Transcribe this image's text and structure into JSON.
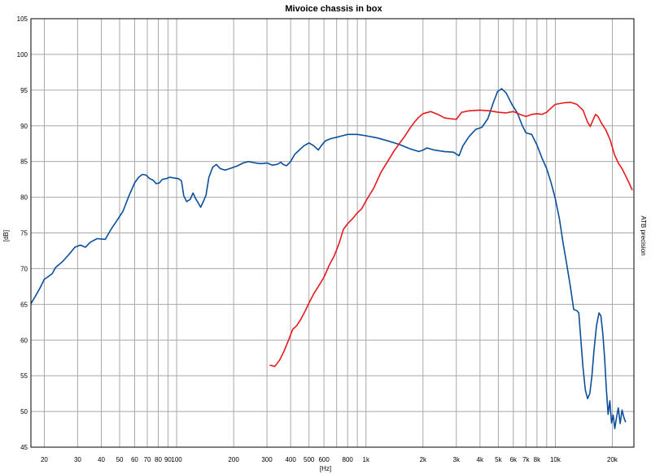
{
  "chart_data": {
    "type": "line",
    "title": "Mivoice chassis in box",
    "xlabel": "[Hz]",
    "ylabel": "[dB]",
    "right_label": "ATB precision",
    "x_scale": "log",
    "xlim": [
      17,
      26000
    ],
    "ylim": [
      45,
      105
    ],
    "grid": true,
    "y_ticks": [
      45,
      50,
      55,
      60,
      65,
      70,
      75,
      80,
      85,
      90,
      95,
      100,
      105
    ],
    "x_ticks": [
      {
        "v": 20,
        "label": "20"
      },
      {
        "v": 30,
        "label": "30"
      },
      {
        "v": 40,
        "label": "40"
      },
      {
        "v": 50,
        "label": "50"
      },
      {
        "v": 60,
        "label": "60"
      },
      {
        "v": 70,
        "label": "70"
      },
      {
        "v": 80,
        "label": "80"
      },
      {
        "v": 90,
        "label": "90"
      },
      {
        "v": 100,
        "label": "100"
      },
      {
        "v": 200,
        "label": "200"
      },
      {
        "v": 300,
        "label": "300"
      },
      {
        "v": 400,
        "label": "400"
      },
      {
        "v": 500,
        "label": "500"
      },
      {
        "v": 600,
        "label": "600"
      },
      {
        "v": 800,
        "label": "800"
      },
      {
        "v": 1000,
        "label": "1k"
      },
      {
        "v": 2000,
        "label": "2k"
      },
      {
        "v": 3000,
        "label": "3k"
      },
      {
        "v": 4000,
        "label": "4k"
      },
      {
        "v": 5000,
        "label": "5k"
      },
      {
        "v": 6000,
        "label": "6k"
      },
      {
        "v": 7000,
        "label": "7k"
      },
      {
        "v": 8000,
        "label": "8k"
      },
      {
        "v": 10000,
        "label": "10k"
      },
      {
        "v": 20000,
        "label": "20k"
      }
    ],
    "x_gridlines": [
      20,
      30,
      40,
      50,
      60,
      70,
      80,
      90,
      100,
      200,
      300,
      400,
      500,
      600,
      700,
      800,
      900,
      1000,
      2000,
      3000,
      4000,
      5000,
      6000,
      7000,
      8000,
      9000,
      10000,
      20000
    ],
    "series": [
      {
        "color": "#0b4f9c",
        "points": [
          [
            17,
            65.1
          ],
          [
            18,
            66.2
          ],
          [
            19,
            67.3
          ],
          [
            20,
            68.5
          ],
          [
            21,
            68.9
          ],
          [
            22,
            69.3
          ],
          [
            23,
            70.2
          ],
          [
            25,
            71.0
          ],
          [
            27,
            72.0
          ],
          [
            29,
            73.0
          ],
          [
            31,
            73.3
          ],
          [
            33,
            73.0
          ],
          [
            35,
            73.7
          ],
          [
            38,
            74.2
          ],
          [
            42,
            74.1
          ],
          [
            45,
            75.5
          ],
          [
            48,
            76.6
          ],
          [
            52,
            78.0
          ],
          [
            56,
            80.2
          ],
          [
            60,
            82.0
          ],
          [
            63,
            82.8
          ],
          [
            66,
            83.2
          ],
          [
            69,
            83.1
          ],
          [
            72,
            82.6
          ],
          [
            75,
            82.4
          ],
          [
            78,
            81.9
          ],
          [
            81,
            82.0
          ],
          [
            84,
            82.5
          ],
          [
            88,
            82.6
          ],
          [
            92,
            82.8
          ],
          [
            97,
            82.7
          ],
          [
            102,
            82.6
          ],
          [
            106,
            82.3
          ],
          [
            109,
            80.2
          ],
          [
            113,
            79.4
          ],
          [
            118,
            79.7
          ],
          [
            122,
            80.6
          ],
          [
            126,
            79.8
          ],
          [
            130,
            79.2
          ],
          [
            134,
            78.6
          ],
          [
            139,
            79.5
          ],
          [
            143,
            80.3
          ],
          [
            148,
            82.8
          ],
          [
            155,
            84.2
          ],
          [
            162,
            84.6
          ],
          [
            170,
            84.0
          ],
          [
            180,
            83.8
          ],
          [
            195,
            84.1
          ],
          [
            210,
            84.4
          ],
          [
            225,
            84.8
          ],
          [
            240,
            85.0
          ],
          [
            260,
            84.8
          ],
          [
            280,
            84.7
          ],
          [
            300,
            84.8
          ],
          [
            320,
            84.5
          ],
          [
            340,
            84.6
          ],
          [
            355,
            84.9
          ],
          [
            365,
            84.6
          ],
          [
            380,
            84.4
          ],
          [
            400,
            85.0
          ],
          [
            420,
            86.0
          ],
          [
            440,
            86.5
          ],
          [
            470,
            87.2
          ],
          [
            500,
            87.6
          ],
          [
            530,
            87.2
          ],
          [
            560,
            86.6
          ],
          [
            580,
            87.2
          ],
          [
            610,
            87.9
          ],
          [
            650,
            88.2
          ],
          [
            700,
            88.4
          ],
          [
            750,
            88.6
          ],
          [
            800,
            88.8
          ],
          [
            900,
            88.8
          ],
          [
            1000,
            88.6
          ],
          [
            1150,
            88.3
          ],
          [
            1300,
            87.9
          ],
          [
            1500,
            87.4
          ],
          [
            1700,
            86.8
          ],
          [
            1900,
            86.4
          ],
          [
            2000,
            86.6
          ],
          [
            2100,
            86.9
          ],
          [
            2300,
            86.6
          ],
          [
            2600,
            86.4
          ],
          [
            2900,
            86.3
          ],
          [
            3100,
            85.8
          ],
          [
            3250,
            87.2
          ],
          [
            3500,
            88.5
          ],
          [
            3800,
            89.5
          ],
          [
            4100,
            89.8
          ],
          [
            4400,
            91.0
          ],
          [
            4700,
            93.2
          ],
          [
            4950,
            94.8
          ],
          [
            5200,
            95.2
          ],
          [
            5500,
            94.6
          ],
          [
            5900,
            93.0
          ],
          [
            6300,
            91.8
          ],
          [
            6700,
            90.0
          ],
          [
            7000,
            89.0
          ],
          [
            7500,
            88.8
          ],
          [
            8000,
            87.3
          ],
          [
            8500,
            85.5
          ],
          [
            9000,
            84.0
          ],
          [
            9500,
            82.0
          ],
          [
            10000,
            79.8
          ],
          [
            10500,
            77.0
          ],
          [
            11000,
            73.5
          ],
          [
            11500,
            70.5
          ],
          [
            12000,
            67.5
          ],
          [
            12500,
            64.3
          ],
          [
            13000,
            64.1
          ],
          [
            13300,
            63.8
          ],
          [
            13600,
            60.5
          ],
          [
            14000,
            56.2
          ],
          [
            14400,
            53.0
          ],
          [
            14800,
            51.8
          ],
          [
            15200,
            52.5
          ],
          [
            15600,
            55.0
          ],
          [
            16000,
            58.5
          ],
          [
            16500,
            62.0
          ],
          [
            17000,
            63.8
          ],
          [
            17400,
            63.4
          ],
          [
            17800,
            61.0
          ],
          [
            18200,
            57.5
          ],
          [
            18600,
            53.0
          ],
          [
            19000,
            49.6
          ],
          [
            19400,
            51.5
          ],
          [
            19800,
            48.4
          ],
          [
            20200,
            49.5
          ],
          [
            20600,
            47.6
          ],
          [
            21000,
            49.0
          ],
          [
            21500,
            50.5
          ],
          [
            22000,
            48.3
          ],
          [
            22500,
            50.2
          ],
          [
            23000,
            49.2
          ],
          [
            23500,
            48.5
          ]
        ]
      },
      {
        "color": "#e8191c",
        "points": [
          [
            310,
            56.5
          ],
          [
            330,
            56.3
          ],
          [
            350,
            57.2
          ],
          [
            370,
            58.5
          ],
          [
            390,
            60.0
          ],
          [
            410,
            61.5
          ],
          [
            430,
            62.0
          ],
          [
            450,
            62.8
          ],
          [
            480,
            64.2
          ],
          [
            500,
            65.2
          ],
          [
            530,
            66.5
          ],
          [
            560,
            67.5
          ],
          [
            600,
            68.8
          ],
          [
            640,
            70.5
          ],
          [
            680,
            71.8
          ],
          [
            720,
            73.5
          ],
          [
            760,
            75.5
          ],
          [
            800,
            76.3
          ],
          [
            850,
            77.0
          ],
          [
            900,
            77.8
          ],
          [
            950,
            78.4
          ],
          [
            1000,
            79.5
          ],
          [
            1100,
            81.3
          ],
          [
            1200,
            83.5
          ],
          [
            1300,
            85.0
          ],
          [
            1400,
            86.4
          ],
          [
            1500,
            87.5
          ],
          [
            1600,
            88.5
          ],
          [
            1700,
            89.6
          ],
          [
            1800,
            90.5
          ],
          [
            1900,
            91.2
          ],
          [
            2000,
            91.7
          ],
          [
            2200,
            92.0
          ],
          [
            2400,
            91.6
          ],
          [
            2600,
            91.1
          ],
          [
            2800,
            91.0
          ],
          [
            3000,
            90.9
          ],
          [
            3200,
            91.9
          ],
          [
            3500,
            92.1
          ],
          [
            4000,
            92.2
          ],
          [
            4500,
            92.1
          ],
          [
            5000,
            91.9
          ],
          [
            5500,
            91.8
          ],
          [
            6000,
            92.0
          ],
          [
            6500,
            91.6
          ],
          [
            7000,
            91.3
          ],
          [
            7500,
            91.6
          ],
          [
            8000,
            91.7
          ],
          [
            8500,
            91.6
          ],
          [
            9000,
            91.9
          ],
          [
            9500,
            92.5
          ],
          [
            10000,
            93.0
          ],
          [
            11000,
            93.2
          ],
          [
            12000,
            93.3
          ],
          [
            13000,
            93.0
          ],
          [
            14000,
            92.2
          ],
          [
            14800,
            90.5
          ],
          [
            15300,
            89.9
          ],
          [
            15800,
            90.8
          ],
          [
            16300,
            91.6
          ],
          [
            16800,
            91.3
          ],
          [
            17500,
            90.4
          ],
          [
            18500,
            89.4
          ],
          [
            19500,
            88.0
          ],
          [
            20500,
            86.0
          ],
          [
            21500,
            84.8
          ],
          [
            22500,
            84.0
          ],
          [
            23500,
            83.0
          ],
          [
            24500,
            82.0
          ],
          [
            25500,
            81.0
          ]
        ]
      }
    ]
  }
}
